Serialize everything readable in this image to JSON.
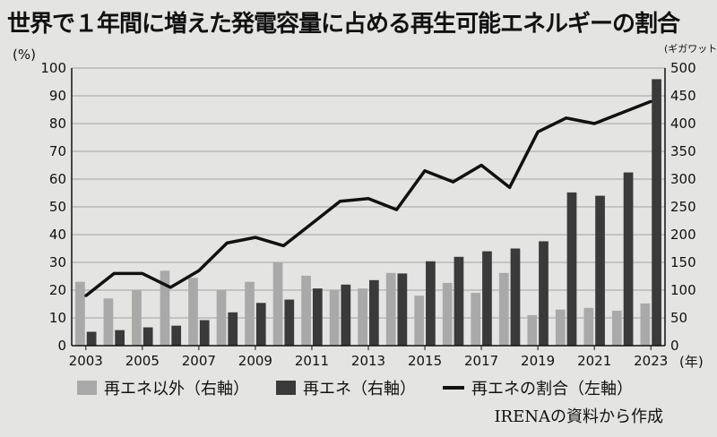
{
  "title": "世界で１年間に増えた発電容量に占める再生可能エネルギーの割合",
  "source": "IRENAの資料から作成",
  "chart_data": {
    "type": "bar",
    "x": [
      2003,
      2004,
      2005,
      2006,
      2007,
      2008,
      2009,
      2010,
      2011,
      2012,
      2013,
      2014,
      2015,
      2016,
      2017,
      2018,
      2019,
      2020,
      2021,
      2022,
      2023
    ],
    "x_tick_labels": [
      "2003",
      "2005",
      "2007",
      "2009",
      "2011",
      "2013",
      "2015",
      "2017",
      "2019",
      "2021",
      "2023"
    ],
    "x_unit": "(年)",
    "left_axis": {
      "unit": "(%)",
      "ylim": [
        0,
        100
      ],
      "ticks": [
        0,
        10,
        20,
        30,
        40,
        50,
        60,
        70,
        80,
        90,
        100
      ]
    },
    "right_axis": {
      "unit": "ギガワット",
      "ylim": [
        0,
        500
      ],
      "ticks": [
        0,
        50,
        100,
        150,
        200,
        250,
        300,
        350,
        400,
        450,
        500
      ]
    },
    "series": [
      {
        "name": "再エネ以外（右軸）",
        "kind": "bar",
        "axis": "right",
        "color": "#a9a9a9",
        "values": [
          115,
          85,
          100,
          135,
          122,
          101,
          115,
          150,
          126,
          101,
          103,
          131,
          90,
          113,
          95,
          131,
          55,
          65,
          68,
          63,
          76
        ]
      },
      {
        "name": "再エネ（右軸）",
        "kind": "bar",
        "axis": "right",
        "color": "#3a3a3a",
        "values": [
          25,
          28,
          33,
          36,
          46,
          60,
          77,
          83,
          103,
          110,
          118,
          130,
          152,
          160,
          170,
          175,
          188,
          276,
          270,
          312,
          480
        ]
      },
      {
        "name": "再エネの割合（左軸）",
        "kind": "line",
        "axis": "left",
        "color": "#111111",
        "values": [
          18,
          26,
          26,
          21,
          27,
          37,
          39,
          36,
          44,
          52,
          53,
          49,
          63,
          59,
          65,
          57,
          77,
          82,
          80,
          84,
          88
        ]
      }
    ],
    "grid": true
  }
}
